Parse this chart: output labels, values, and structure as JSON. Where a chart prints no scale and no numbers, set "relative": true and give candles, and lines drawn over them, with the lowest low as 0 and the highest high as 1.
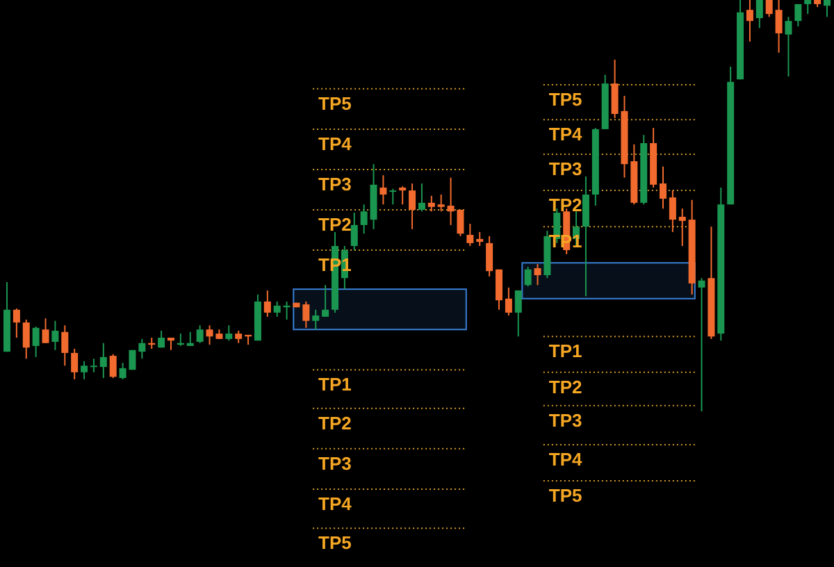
{
  "chart_data": {
    "type": "candlestick",
    "relative": true,
    "colors": [
      "#1a9650",
      "#f26b2e",
      "#f26b2e",
      "#1a9650",
      "#f26b2e",
      "#1a9650",
      "#f26b2e",
      "#f26b2e",
      "#1a9650",
      "#1a9650",
      "#1a9650",
      "#f26b2e",
      "#1a9650",
      "#1a9650",
      "#1a9650",
      "#f26b2e",
      "#1a9650",
      "#f26b2e",
      "#1a9650",
      "#1a9650",
      "#1a9650",
      "#f26b2e",
      "#f26b2e",
      "#1a9650",
      "#f26b2e",
      "#f26b2e",
      "#1a9650",
      "#f26b2e",
      "#1a9650",
      "#1a9650",
      "#f26b2e",
      "#f26b2e",
      "#1a9650",
      "#1a9650",
      "#1a9650",
      "#1a9650",
      "#1a9650",
      "#1a9650",
      "#1a9650",
      "#f26b2e",
      "#1a9650",
      "#f26b2e",
      "#f26b2e",
      "#1a9650",
      "#f26b2e",
      "#f26b2e",
      "#f26b2e",
      "#f26b2e",
      "#f26b2e",
      "#f26b2e",
      "#f26b2e",
      "#f26b2e",
      "#f26b2e",
      "#1a9650",
      "#1a9650",
      "#f26b2e",
      "#1a9650",
      "#1a9650",
      "#f26b2e",
      "#1a9650",
      "#1a9650",
      "#1a9650",
      "#1a9650",
      "#f26b2e",
      "#f26b2e",
      "#f26b2e",
      "#1a9650",
      "#f26b2e",
      "#f26b2e",
      "#f26b2e",
      "#f26b2e",
      "#f26b2e",
      "#1a9650",
      "#f26b2e",
      "#1a9650",
      "#1a9650",
      "#1a9650",
      "#f26b2e",
      "#1a9650",
      "#f26b2e",
      "#f26b2e",
      "#1a9650",
      "#1a9650",
      "#1a9650",
      "#f26b2e",
      "#1a9650"
    ],
    "categories": [
      null,
      null,
      null,
      null,
      null,
      null,
      null,
      null,
      null,
      null,
      null,
      null,
      null,
      null,
      null,
      null,
      null,
      null,
      null,
      null,
      null,
      null,
      null,
      null,
      null,
      null,
      null,
      null,
      null,
      null,
      null,
      null,
      null,
      null,
      null,
      null,
      null,
      null,
      null,
      null,
      null,
      null,
      null,
      null,
      null,
      null,
      null,
      null,
      null,
      null,
      null,
      null,
      null,
      null,
      null,
      null,
      null,
      null,
      null,
      null,
      null,
      null,
      null,
      null,
      null,
      null,
      null,
      null,
      null,
      null,
      null,
      null,
      null,
      null,
      null,
      null,
      null,
      null,
      null,
      null,
      null,
      null,
      null,
      null,
      null,
      null
    ],
    "ohlc": [
      [
        0.145,
        0.314,
        0.145,
        0.247
      ],
      [
        0.247,
        0.25,
        0.179,
        0.216
      ],
      [
        0.216,
        0.223,
        0.128,
        0.155
      ],
      [
        0.159,
        0.206,
        0.132,
        0.203
      ],
      [
        0.199,
        0.226,
        0.166,
        0.166
      ],
      [
        0.169,
        0.22,
        0.149,
        0.196
      ],
      [
        0.193,
        0.209,
        0.111,
        0.142
      ],
      [
        0.142,
        0.152,
        0.078,
        0.095
      ],
      [
        0.095,
        0.122,
        0.078,
        0.111
      ],
      [
        0.108,
        0.128,
        0.095,
        0.111
      ],
      [
        0.108,
        0.166,
        0.081,
        0.132
      ],
      [
        0.135,
        0.139,
        0.081,
        0.084
      ],
      [
        0.081,
        0.118,
        0.078,
        0.105
      ],
      [
        0.101,
        0.149,
        0.101,
        0.149
      ],
      [
        0.145,
        0.176,
        0.128,
        0.166
      ],
      [
        0.166,
        0.179,
        0.152,
        0.162
      ],
      [
        0.155,
        0.196,
        0.155,
        0.179
      ],
      [
        0.179,
        0.179,
        0.149,
        0.172
      ],
      [
        0.162,
        0.189,
        0.159,
        0.166
      ],
      [
        0.159,
        0.193,
        0.159,
        0.166
      ],
      [
        0.169,
        0.209,
        0.166,
        0.199
      ],
      [
        0.199,
        0.209,
        0.162,
        0.182
      ],
      [
        0.189,
        0.199,
        0.176,
        0.176
      ],
      [
        0.176,
        0.209,
        0.172,
        0.189
      ],
      [
        0.189,
        0.196,
        0.166,
        0.176
      ],
      [
        0.186,
        0.186,
        0.162,
        0.182
      ],
      [
        0.172,
        0.284,
        0.172,
        0.267
      ],
      [
        0.267,
        0.294,
        0.23,
        0.24
      ],
      [
        0.24,
        0.267,
        0.23,
        0.257
      ],
      [
        0.253,
        0.267,
        0.223,
        0.257
      ],
      [
        0.264,
        0.264,
        0.253,
        0.253
      ],
      [
        0.26,
        0.267,
        0.203,
        0.22
      ],
      [
        0.22,
        0.247,
        0.199,
        0.233
      ],
      [
        0.23,
        0.307,
        0.23,
        0.247
      ],
      [
        0.247,
        0.436,
        0.24,
        0.402
      ],
      [
        0.324,
        0.402,
        0.297,
        0.392
      ],
      [
        0.402,
        0.483,
        0.392,
        0.453
      ],
      [
        0.453,
        0.503,
        0.432,
        0.486
      ],
      [
        0.466,
        0.601,
        0.443,
        0.551
      ],
      [
        0.544,
        0.574,
        0.503,
        0.527
      ],
      [
        0.534,
        0.541,
        0.503,
        0.537
      ],
      [
        0.544,
        0.547,
        0.503,
        0.537
      ],
      [
        0.537,
        0.554,
        0.443,
        0.49
      ],
      [
        0.49,
        0.554,
        0.486,
        0.507
      ],
      [
        0.507,
        0.524,
        0.486,
        0.497
      ],
      [
        0.503,
        0.527,
        0.486,
        0.497
      ],
      [
        0.5,
        0.568,
        0.453,
        0.486
      ],
      [
        0.49,
        0.49,
        0.426,
        0.432
      ],
      [
        0.429,
        0.456,
        0.402,
        0.409
      ],
      [
        0.419,
        0.436,
        0.402,
        0.412
      ],
      [
        0.409,
        0.426,
        0.328,
        0.341
      ],
      [
        0.345,
        0.345,
        0.247,
        0.27
      ],
      [
        0.274,
        0.301,
        0.233,
        0.24
      ],
      [
        0.24,
        0.294,
        0.182,
        0.294
      ],
      [
        0.307,
        0.351,
        0.304,
        0.345
      ],
      [
        0.348,
        0.358,
        0.307,
        0.331
      ],
      [
        0.331,
        0.439,
        0.324,
        0.426
      ],
      [
        0.419,
        0.493,
        0.409,
        0.483
      ],
      [
        0.486,
        0.493,
        0.382,
        0.392
      ],
      [
        0.419,
        0.486,
        0.402,
        0.449
      ],
      [
        0.449,
        0.571,
        0.28,
        0.527
      ],
      [
        0.527,
        0.689,
        0.5,
        0.686
      ],
      [
        0.686,
        0.818,
        0.686,
        0.797
      ],
      [
        0.797,
        0.855,
        0.713,
        0.723
      ],
      [
        0.73,
        0.767,
        0.568,
        0.601
      ],
      [
        0.608,
        0.649,
        0.503,
        0.507
      ],
      [
        0.507,
        0.672,
        0.503,
        0.652
      ],
      [
        0.652,
        0.689,
        0.544,
        0.551
      ],
      [
        0.554,
        0.595,
        0.493,
        0.517
      ],
      [
        0.52,
        0.537,
        0.436,
        0.466
      ],
      [
        0.473,
        0.493,
        0.402,
        0.463
      ],
      [
        0.466,
        0.514,
        0.284,
        0.311
      ],
      [
        0.301,
        0.324,
        0,
        0.318
      ],
      [
        0.324,
        0.449,
        0.176,
        0.182
      ],
      [
        0.189,
        0.544,
        0.172,
        0.503
      ],
      [
        0.503,
        0.838,
        0.503,
        0.801
      ],
      [
        0.807,
        1,
        0.807,
        0.97
      ],
      [
        0.976,
        1,
        0.899,
        0.949
      ],
      [
        0.956,
        1,
        0.932,
        1
      ],
      [
        1,
        1,
        0.959,
        0.966
      ],
      [
        0.976,
        1,
        0.872,
        0.919
      ],
      [
        0.916,
        0.959,
        0.814,
        0.949
      ],
      [
        0.949,
        0.99,
        0.936,
        0.99
      ],
      [
        0.99,
        1,
        0.966,
        1
      ],
      [
        1,
        1,
        0.983,
        0.99
      ],
      [
        0.986,
        1,
        0.959,
        1
      ]
    ],
    "ref_lines": [
      {
        "axis": "y",
        "value": 0.784,
        "label": "TP5",
        "color": "#d49a2a",
        "line_style": "dotted"
      },
      {
        "axis": "y",
        "value": 0.686,
        "label": "TP4",
        "color": "#d49a2a",
        "line_style": "dotted"
      },
      {
        "axis": "y",
        "value": 0.588,
        "label": "TP3",
        "color": "#d49a2a",
        "line_style": "dotted"
      },
      {
        "axis": "y",
        "value": 0.49,
        "label": "TP2",
        "color": "#d49a2a",
        "line_style": "dotted"
      },
      {
        "axis": "y",
        "value": 0.392,
        "label": "TP1",
        "color": "#d49a2a",
        "line_style": "dotted"
      },
      {
        "axis": "y",
        "value": 0.101,
        "label": "TP1",
        "color": "#d49a2a",
        "line_style": "dotted"
      },
      {
        "axis": "y",
        "value": 0.007,
        "label": "TP2",
        "color": "#d49a2a",
        "line_style": "dotted"
      },
      {
        "axis": "y",
        "value": -0.091,
        "label": "TP3",
        "color": "#d49a2a",
        "line_style": "dotted"
      },
      {
        "axis": "y",
        "value": -0.189,
        "label": "TP4",
        "color": "#d49a2a",
        "line_style": "dotted"
      },
      {
        "axis": "y",
        "value": -0.284,
        "label": "TP5",
        "color": "#d49a2a",
        "line_style": "dotted"
      },
      {
        "axis": "y",
        "value": 0.794,
        "label": "TP5",
        "color": "#d49a2a",
        "line_style": "dotted"
      },
      {
        "axis": "y",
        "value": 0.709,
        "label": "TP4",
        "color": "#d49a2a",
        "line_style": "dotted"
      },
      {
        "axis": "y",
        "value": 0.625,
        "label": "TP3",
        "color": "#d49a2a",
        "line_style": "dotted"
      },
      {
        "axis": "y",
        "value": 0.537,
        "label": "TP2",
        "color": "#d49a2a",
        "line_style": "dotted"
      },
      {
        "axis": "y",
        "value": 0.449,
        "label": "TP1",
        "color": "#d49a2a",
        "line_style": "dotted"
      },
      {
        "axis": "y",
        "value": 0.182,
        "label": "TP1",
        "color": "#d49a2a",
        "line_style": "dotted"
      },
      {
        "axis": "y",
        "value": 0.095,
        "label": "TP2",
        "color": "#d49a2a",
        "line_style": "dotted"
      },
      {
        "axis": "y",
        "value": 0.014,
        "label": "TP3",
        "color": "#d49a2a",
        "line_style": "dotted"
      },
      {
        "axis": "y",
        "value": -0.081,
        "label": "TP4",
        "color": "#d49a2a",
        "line_style": "dotted"
      },
      {
        "axis": "y",
        "value": -0.169,
        "label": "TP5",
        "color": "#d49a2a",
        "line_style": "dotted"
      }
    ],
    "bands": [
      {
        "axis": "y",
        "from": 0.199,
        "to": 0.297,
        "color": "#3a80d8"
      },
      {
        "axis": "y",
        "from": 0.274,
        "to": 0.361,
        "color": "#3a80d8"
      }
    ]
  }
}
